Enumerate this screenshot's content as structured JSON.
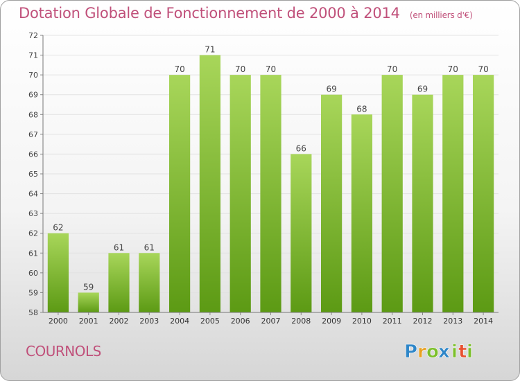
{
  "title": "Dotation Globale de Fonctionnement de 2000 à 2014",
  "subtitle": "(en milliers d'€)",
  "commune": "COURNOLS",
  "brand": {
    "letters": [
      "P",
      "r",
      "o",
      "x",
      "i",
      "t",
      "i"
    ],
    "colors": [
      "#2e86c8",
      "#e8a020",
      "#7bbf2a",
      "#2e86c8",
      "#7bbf2a",
      "#e85030",
      "#7bbf2a"
    ]
  },
  "colors": {
    "bar": "#7fbe2e",
    "bar_top": "#a8d65a",
    "bar_bottom": "#5c9a14",
    "accent": "#c0507a"
  },
  "chart_data": {
    "type": "bar",
    "categories": [
      "2000",
      "2001",
      "2002",
      "2003",
      "2004",
      "2005",
      "2006",
      "2007",
      "2008",
      "2009",
      "2010",
      "2011",
      "2012",
      "2013",
      "2014"
    ],
    "values": [
      62,
      59,
      61,
      61,
      70,
      71,
      70,
      70,
      66,
      69,
      68,
      70,
      69,
      70,
      70
    ],
    "ylim": [
      58,
      72
    ],
    "yticks": [
      58,
      59,
      60,
      61,
      62,
      63,
      64,
      65,
      66,
      67,
      68,
      69,
      70,
      71,
      72
    ],
    "grid": true,
    "legend": "none"
  }
}
